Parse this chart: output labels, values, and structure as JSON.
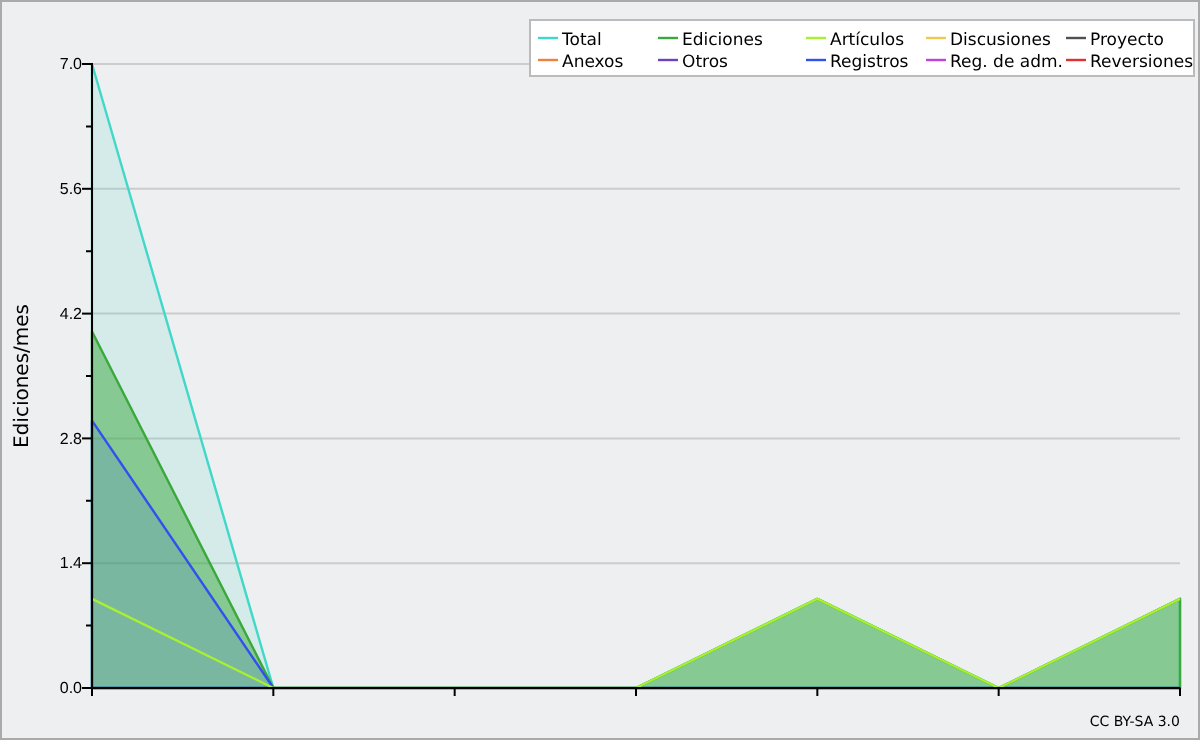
{
  "chart_data": {
    "type": "line",
    "ylabel": "Ediciones/mes",
    "categories": [
      null,
      null,
      null,
      null,
      null,
      null,
      null
    ],
    "ylim": [
      0,
      7
    ],
    "yticks": [
      {
        "value": 0,
        "label": "0.0"
      },
      {
        "value": 0.7,
        "label": null
      },
      {
        "value": 1.4,
        "label": "1.4"
      },
      {
        "value": 2.1,
        "label": null
      },
      {
        "value": 2.8,
        "label": "2.8"
      },
      {
        "value": 3.5,
        "label": null
      },
      {
        "value": 4.2,
        "label": "4.2"
      },
      {
        "value": 4.9,
        "label": null
      },
      {
        "value": 5.6,
        "label": "5.6"
      },
      {
        "value": 6.3,
        "label": null
      },
      {
        "value": 7,
        "label": "7.0"
      }
    ],
    "grid": "y",
    "legend": "top right",
    "annotations": [
      "CC BY-SA 3.0"
    ],
    "series": [
      {
        "name": "Total",
        "type": "area",
        "color": "#40d8c8",
        "values": [
          7,
          0,
          0,
          0,
          1,
          0,
          1
        ]
      },
      {
        "name": "Ediciones",
        "type": "area",
        "color": "#3aa83a",
        "values": [
          4,
          0,
          0,
          0,
          1,
          0,
          1
        ]
      },
      {
        "name": "Artículos",
        "color": "#a8f030",
        "values": [
          1,
          0,
          0,
          0,
          1,
          0,
          1
        ]
      },
      {
        "name": "Discusiones",
        "color": "#f0c850",
        "values": [
          null,
          null,
          null,
          null,
          null,
          null,
          null
        ]
      },
      {
        "name": "Proyecto",
        "color": "#505050",
        "values": [
          null,
          null,
          null,
          null,
          null,
          null,
          null
        ]
      },
      {
        "name": "Anexos",
        "color": "#f08040",
        "values": [
          null,
          null,
          null,
          null,
          null,
          null,
          null
        ]
      },
      {
        "name": "Otros",
        "color": "#7040c0",
        "values": [
          null,
          null,
          null,
          null,
          null,
          null,
          null
        ]
      },
      {
        "name": "Registros",
        "type": "area",
        "color": "#3050f0",
        "values": [
          3,
          0,
          0,
          0,
          0,
          0,
          0
        ]
      },
      {
        "name": "Reg. de adm.",
        "color": "#c040e0",
        "values": [
          null,
          null,
          null,
          null,
          null,
          null,
          null
        ]
      },
      {
        "name": "Reversiones",
        "color": "#e03030",
        "values": [
          null,
          null,
          null,
          null,
          null,
          null,
          null
        ]
      }
    ]
  }
}
